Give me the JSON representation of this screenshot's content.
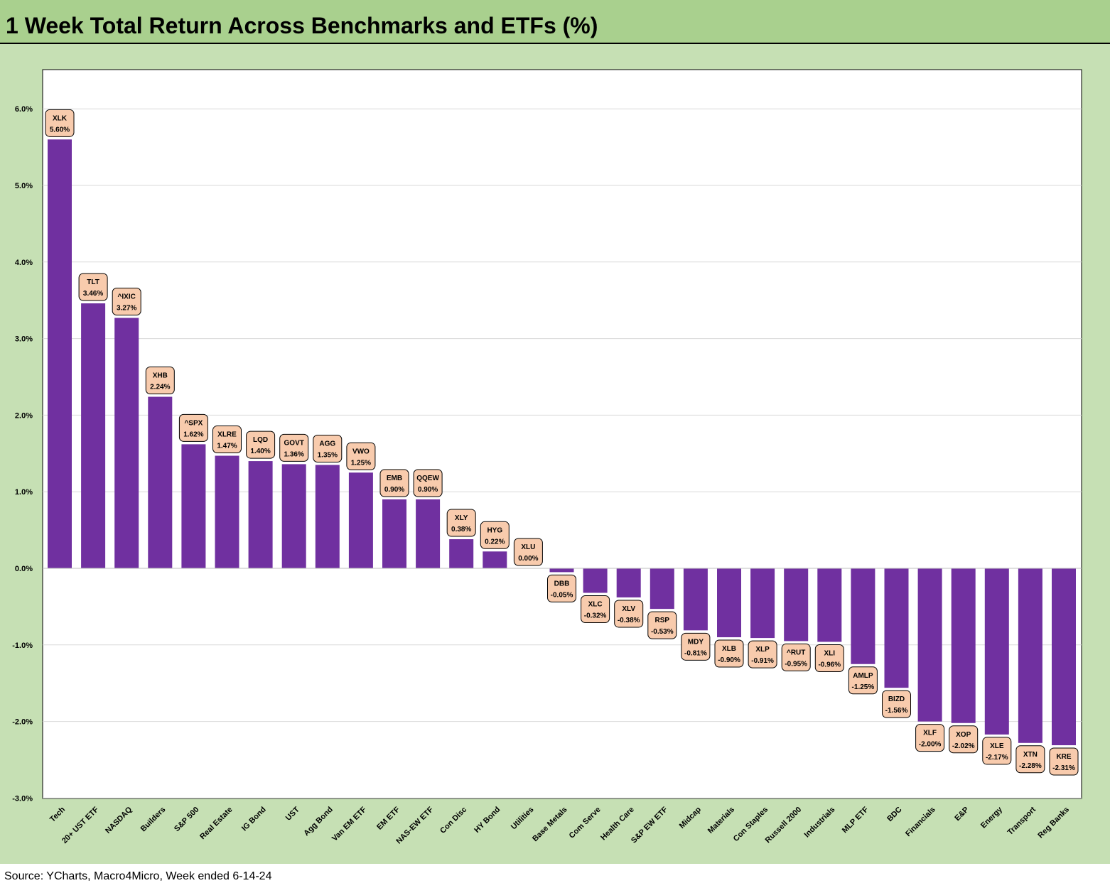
{
  "title": "1 Week Total Return Across Benchmarks and ETFs (%)",
  "source": "Source: YCharts, Macro4Micro, Week ended 6-14-24",
  "colors": {
    "bar": "#7030a0",
    "label_fill": "#f8cbad",
    "background": "#c6e0b4",
    "title_bg": "#a9d08e"
  },
  "chart_data": {
    "type": "bar",
    "title": "1 Week Total Return Across Benchmarks and ETFs (%)",
    "xlabel": "",
    "ylabel": "",
    "ylim": [
      -3.0,
      6.5
    ],
    "yticks": [
      6.0,
      5.0,
      4.0,
      3.0,
      2.0,
      1.0,
      0.0,
      -1.0,
      -2.0,
      -3.0
    ],
    "ytick_labels": [
      "6.0%",
      "5.0%",
      "4.0%",
      "3.0%",
      "2.0%",
      "1.0%",
      "0.0%",
      "-1.0%",
      "-2.0%",
      "-3.0%"
    ],
    "grid": true,
    "legend": "none",
    "categories": [
      "Tech",
      "20+ UST ETF",
      "NASDAQ",
      "Builders",
      "S&P 500",
      "Real Estate",
      "IG Bond",
      "UST",
      "Agg Bond",
      "Van EM ETF",
      "EM ETF",
      "NAS-EW ETF",
      "Con Disc",
      "HY Bond",
      "Utilities",
      "Base Metals",
      "Com Serve",
      "Health Care",
      "S&P EW ETF",
      "Midcap",
      "Materials",
      "Con Staples",
      "Russell 2000",
      "Industrials",
      "MLP ETF",
      "BDC",
      "Financials",
      "E&P",
      "Energy",
      "Transport",
      "Reg Banks"
    ],
    "tickers": [
      "XLK",
      "TLT",
      "^IXIC",
      "XHB",
      "^SPX",
      "XLRE",
      "LQD",
      "GOVT",
      "AGG",
      "VWO",
      "EMB",
      "QQEW",
      "XLY",
      "HYG",
      "XLU",
      "DBB",
      "XLC",
      "XLV",
      "RSP",
      "MDY",
      "XLB",
      "XLP",
      "^RUT",
      "XLI",
      "AMLP",
      "BIZD",
      "XLF",
      "XOP",
      "XLE",
      "XTN",
      "KRE"
    ],
    "values": [
      5.6,
      3.46,
      3.27,
      2.24,
      1.62,
      1.47,
      1.4,
      1.36,
      1.35,
      1.25,
      0.9,
      0.9,
      0.38,
      0.22,
      0.0,
      -0.05,
      -0.32,
      -0.38,
      -0.53,
      -0.81,
      -0.9,
      -0.91,
      -0.95,
      -0.96,
      -1.25,
      -1.56,
      -2.0,
      -2.02,
      -2.17,
      -2.28,
      -2.31
    ],
    "value_labels": [
      "5.60%",
      "3.46%",
      "3.27%",
      "2.24%",
      "1.62%",
      "1.47%",
      "1.40%",
      "1.36%",
      "1.35%",
      "1.25%",
      "0.90%",
      "0.90%",
      "0.38%",
      "0.22%",
      "0.00%",
      "-0.05%",
      "-0.32%",
      "-0.38%",
      "-0.53%",
      "-0.81%",
      "-0.90%",
      "-0.91%",
      "-0.95%",
      "-0.96%",
      "-1.25%",
      "-1.56%",
      "-2.00%",
      "-2.02%",
      "-2.17%",
      "-2.28%",
      "-2.31%"
    ]
  }
}
